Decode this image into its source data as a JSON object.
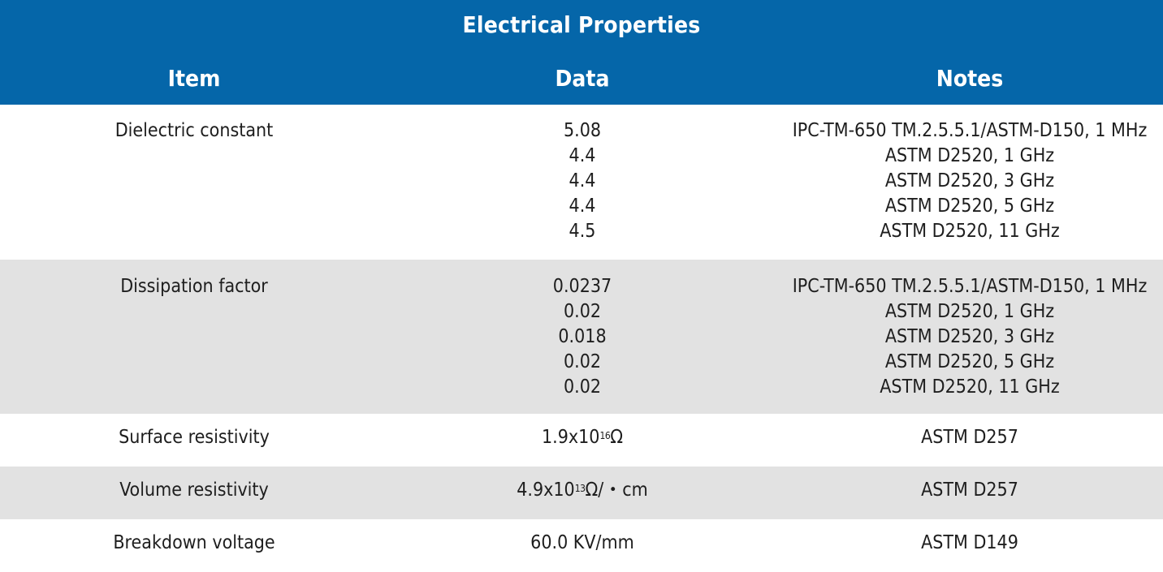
{
  "table": {
    "title": "Electrical Properties",
    "columns": [
      "Item",
      "Data",
      "Notes"
    ],
    "rows": [
      {
        "item": "Dielectric constant",
        "data": [
          "5.08",
          "4.4",
          "4.4",
          "4.4",
          "4.5"
        ],
        "notes": [
          "IPC-TM-650 TM.2.5.5.1/ASTM-D150, 1 MHz",
          "ASTM D2520, 1 GHz",
          "ASTM D2520, 3 GHz",
          "ASTM D2520, 5 GHz",
          "ASTM D2520, 11 GHz"
        ]
      },
      {
        "item": "Dissipation factor",
        "data": [
          "0.0237",
          "0.02",
          "0.018",
          "0.02",
          "0.02"
        ],
        "notes": [
          "IPC-TM-650 TM.2.5.5.1/ASTM-D150, 1 MHz",
          "ASTM D2520, 1 GHz",
          "ASTM D2520, 3 GHz",
          "ASTM D2520, 5 GHz",
          "ASTM D2520, 11 GHz"
        ]
      },
      {
        "item": "Surface resistivity",
        "data_base": "1.9x10",
        "data_exp": "16",
        "data_unit": "Ω",
        "notes": "ASTM D257"
      },
      {
        "item": "Volume resistivity",
        "data_base": "4.9x10",
        "data_exp": "13",
        "data_unit": "Ω/・cm",
        "notes": "ASTM D257"
      },
      {
        "item": "Breakdown voltage",
        "data": "60.0 KV/mm",
        "notes": "ASTM D149"
      }
    ]
  },
  "colors": {
    "header_bg": "#0566a9",
    "header_text": "#ffffff",
    "stripe_bg": "#e2e2e2",
    "body_text": "#1e1e1e"
  }
}
